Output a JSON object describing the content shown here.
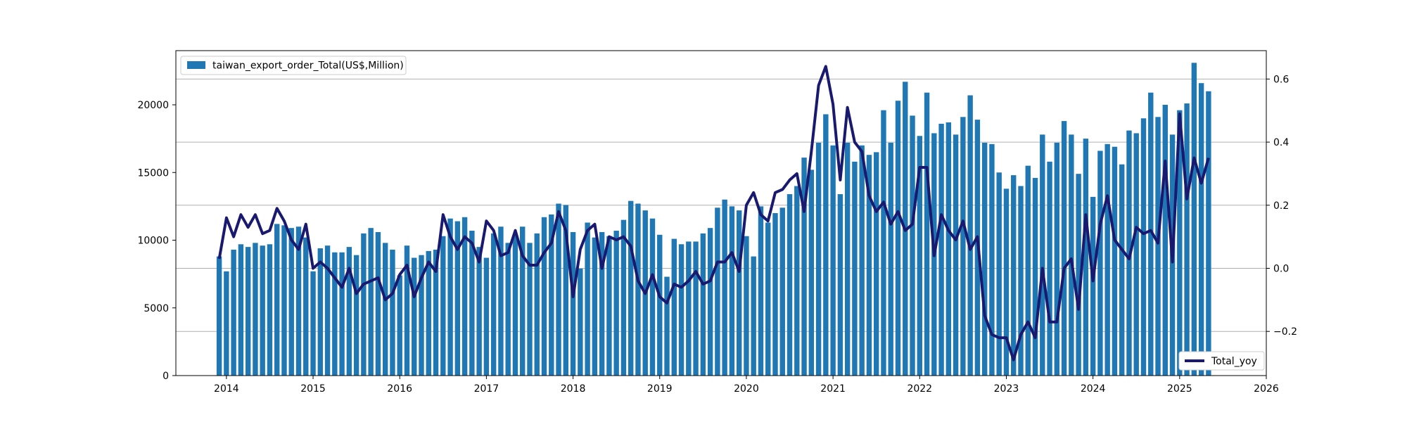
{
  "chart_data": {
    "type": "bar+line",
    "x_ticks": [
      "2014",
      "2015",
      "2016",
      "2017",
      "2018",
      "2019",
      "2020",
      "2021",
      "2022",
      "2023",
      "2024",
      "2025",
      "2026"
    ],
    "x_range": [
      "2013-06",
      "2026-01"
    ],
    "y_left": {
      "ticks": [
        "0",
        "5000",
        "10000",
        "15000",
        "20000"
      ],
      "range": [
        0,
        24000
      ]
    },
    "y_right": {
      "ticks": [
        "−0.2",
        "0.0",
        "0.2",
        "0.4",
        "0.6"
      ],
      "range": [
        -0.34,
        0.69
      ]
    },
    "grid": "horizontal-right-axis",
    "legend_bar_position": "upper-left",
    "legend_line_position": "lower-right",
    "series": [
      {
        "name": "taiwan_export_order_Total(US$,Million)",
        "kind": "bar",
        "axis": "left",
        "color": "#1f77b4",
        "points": [
          [
            "2013-12",
            8800
          ],
          [
            "2014-01",
            7700
          ],
          [
            "2014-02",
            9300
          ],
          [
            "2014-03",
            9700
          ],
          [
            "2014-04",
            9500
          ],
          [
            "2014-05",
            9800
          ],
          [
            "2014-06",
            9600
          ],
          [
            "2014-07",
            9700
          ],
          [
            "2014-08",
            11200
          ],
          [
            "2014-09",
            11100
          ],
          [
            "2014-10",
            10900
          ],
          [
            "2014-11",
            11000
          ],
          [
            "2014-12",
            10200
          ],
          [
            "2015-01",
            7700
          ],
          [
            "2015-02",
            9400
          ],
          [
            "2015-03",
            9600
          ],
          [
            "2015-04",
            9100
          ],
          [
            "2015-05",
            9100
          ],
          [
            "2015-06",
            9500
          ],
          [
            "2015-07",
            8900
          ],
          [
            "2015-08",
            10500
          ],
          [
            "2015-09",
            10900
          ],
          [
            "2015-10",
            10600
          ],
          [
            "2015-11",
            9800
          ],
          [
            "2015-12",
            9300
          ],
          [
            "2016-01",
            7400
          ],
          [
            "2016-02",
            9600
          ],
          [
            "2016-03",
            8700
          ],
          [
            "2016-04",
            8900
          ],
          [
            "2016-05",
            9200
          ],
          [
            "2016-06",
            9300
          ],
          [
            "2016-07",
            10300
          ],
          [
            "2016-08",
            11600
          ],
          [
            "2016-09",
            11400
          ],
          [
            "2016-10",
            11700
          ],
          [
            "2016-11",
            10700
          ],
          [
            "2016-12",
            9500
          ],
          [
            "2017-01",
            8700
          ],
          [
            "2017-02",
            10500
          ],
          [
            "2017-03",
            11000
          ],
          [
            "2017-04",
            9800
          ],
          [
            "2017-05",
            10400
          ],
          [
            "2017-06",
            11000
          ],
          [
            "2017-07",
            9800
          ],
          [
            "2017-08",
            10500
          ],
          [
            "2017-09",
            11700
          ],
          [
            "2017-10",
            11900
          ],
          [
            "2017-11",
            12700
          ],
          [
            "2017-12",
            12600
          ],
          [
            "2018-01",
            10600
          ],
          [
            "2018-02",
            7900
          ],
          [
            "2018-03",
            11300
          ],
          [
            "2018-04",
            10200
          ],
          [
            "2018-05",
            10600
          ],
          [
            "2018-06",
            10300
          ],
          [
            "2018-07",
            10700
          ],
          [
            "2018-08",
            11500
          ],
          [
            "2018-09",
            12900
          ],
          [
            "2018-10",
            12700
          ],
          [
            "2018-11",
            12200
          ],
          [
            "2018-12",
            11600
          ],
          [
            "2019-01",
            10400
          ],
          [
            "2019-02",
            7300
          ],
          [
            "2019-03",
            10100
          ],
          [
            "2019-04",
            9700
          ],
          [
            "2019-05",
            9900
          ],
          [
            "2019-06",
            9900
          ],
          [
            "2019-07",
            10500
          ],
          [
            "2019-08",
            10900
          ],
          [
            "2019-09",
            12400
          ],
          [
            "2019-10",
            13000
          ],
          [
            "2019-11",
            12500
          ],
          [
            "2019-12",
            12200
          ],
          [
            "2020-01",
            10300
          ],
          [
            "2020-02",
            8800
          ],
          [
            "2020-03",
            12500
          ],
          [
            "2020-04",
            11300
          ],
          [
            "2020-05",
            12000
          ],
          [
            "2020-06",
            12400
          ],
          [
            "2020-07",
            13400
          ],
          [
            "2020-08",
            14000
          ],
          [
            "2020-09",
            16100
          ],
          [
            "2020-10",
            15200
          ],
          [
            "2020-11",
            17200
          ],
          [
            "2020-12",
            19300
          ],
          [
            "2021-01",
            17000
          ],
          [
            "2021-02",
            13400
          ],
          [
            "2021-03",
            17200
          ],
          [
            "2021-04",
            15800
          ],
          [
            "2021-05",
            17000
          ],
          [
            "2021-06",
            16300
          ],
          [
            "2021-07",
            16500
          ],
          [
            "2021-08",
            19600
          ],
          [
            "2021-09",
            17200
          ],
          [
            "2021-10",
            20300
          ],
          [
            "2021-11",
            21700
          ],
          [
            "2021-12",
            19200
          ],
          [
            "2022-01",
            17700
          ],
          [
            "2022-02",
            20900
          ],
          [
            "2022-03",
            17900
          ],
          [
            "2022-04",
            18600
          ],
          [
            "2022-05",
            18700
          ],
          [
            "2022-06",
            17800
          ],
          [
            "2022-07",
            19100
          ],
          [
            "2022-08",
            20700
          ],
          [
            "2022-09",
            18900
          ],
          [
            "2022-10",
            17200
          ],
          [
            "2022-11",
            17100
          ],
          [
            "2022-12",
            15000
          ],
          [
            "2023-01",
            13800
          ],
          [
            "2023-02",
            14800
          ],
          [
            "2023-03",
            14000
          ],
          [
            "2023-04",
            15500
          ],
          [
            "2023-05",
            14600
          ],
          [
            "2023-06",
            17800
          ],
          [
            "2023-07",
            15800
          ],
          [
            "2023-08",
            17200
          ],
          [
            "2023-09",
            18800
          ],
          [
            "2023-10",
            17800
          ],
          [
            "2023-11",
            14900
          ],
          [
            "2023-12",
            17500
          ],
          [
            "2024-01",
            13200
          ],
          [
            "2024-02",
            16600
          ],
          [
            "2024-03",
            17100
          ],
          [
            "2024-04",
            16900
          ],
          [
            "2024-05",
            15600
          ],
          [
            "2024-06",
            18100
          ],
          [
            "2024-07",
            17900
          ],
          [
            "2024-08",
            19000
          ],
          [
            "2024-09",
            20900
          ],
          [
            "2024-10",
            19100
          ],
          [
            "2024-11",
            20000
          ],
          [
            "2024-12",
            17800
          ],
          [
            "2025-01",
            19600
          ],
          [
            "2025-02",
            20100
          ],
          [
            "2025-03",
            23100
          ],
          [
            "2025-04",
            21600
          ],
          [
            "2025-05",
            21000
          ]
        ]
      },
      {
        "name": "Total_yoy",
        "kind": "line",
        "axis": "right",
        "color": "#191970",
        "points": [
          [
            "2013-12",
            0.03
          ],
          [
            "2014-01",
            0.16
          ],
          [
            "2014-02",
            0.1
          ],
          [
            "2014-03",
            0.17
          ],
          [
            "2014-04",
            0.13
          ],
          [
            "2014-05",
            0.17
          ],
          [
            "2014-06",
            0.11
          ],
          [
            "2014-07",
            0.12
          ],
          [
            "2014-08",
            0.19
          ],
          [
            "2014-09",
            0.15
          ],
          [
            "2014-10",
            0.09
          ],
          [
            "2014-11",
            0.06
          ],
          [
            "2014-12",
            0.14
          ],
          [
            "2015-01",
            0.0
          ],
          [
            "2015-02",
            0.02
          ],
          [
            "2015-03",
            0.0
          ],
          [
            "2015-04",
            -0.03
          ],
          [
            "2015-05",
            -0.06
          ],
          [
            "2015-06",
            0.0
          ],
          [
            "2015-07",
            -0.08
          ],
          [
            "2015-08",
            -0.05
          ],
          [
            "2015-09",
            -0.04
          ],
          [
            "2015-10",
            -0.03
          ],
          [
            "2015-11",
            -0.1
          ],
          [
            "2015-12",
            -0.08
          ],
          [
            "2016-01",
            -0.02
          ],
          [
            "2016-02",
            0.01
          ],
          [
            "2016-03",
            -0.09
          ],
          [
            "2016-04",
            -0.03
          ],
          [
            "2016-05",
            0.02
          ],
          [
            "2016-06",
            -0.01
          ],
          [
            "2016-07",
            0.17
          ],
          [
            "2016-08",
            0.1
          ],
          [
            "2016-09",
            0.06
          ],
          [
            "2016-10",
            0.1
          ],
          [
            "2016-11",
            0.08
          ],
          [
            "2016-12",
            0.02
          ],
          [
            "2017-01",
            0.15
          ],
          [
            "2017-02",
            0.12
          ],
          [
            "2017-03",
            0.04
          ],
          [
            "2017-04",
            0.05
          ],
          [
            "2017-05",
            0.12
          ],
          [
            "2017-06",
            0.04
          ],
          [
            "2017-07",
            0.01
          ],
          [
            "2017-08",
            0.01
          ],
          [
            "2017-09",
            0.05
          ],
          [
            "2017-10",
            0.08
          ],
          [
            "2017-11",
            0.18
          ],
          [
            "2017-12",
            0.12
          ],
          [
            "2018-01",
            -0.09
          ],
          [
            "2018-02",
            0.06
          ],
          [
            "2018-03",
            0.12
          ],
          [
            "2018-04",
            0.14
          ],
          [
            "2018-05",
            0.0
          ],
          [
            "2018-06",
            0.1
          ],
          [
            "2018-07",
            0.09
          ],
          [
            "2018-08",
            0.1
          ],
          [
            "2018-09",
            0.07
          ],
          [
            "2018-10",
            -0.04
          ],
          [
            "2018-11",
            -0.08
          ],
          [
            "2018-12",
            -0.02
          ],
          [
            "2019-01",
            -0.09
          ],
          [
            "2019-02",
            -0.11
          ],
          [
            "2019-03",
            -0.05
          ],
          [
            "2019-04",
            -0.06
          ],
          [
            "2019-05",
            -0.04
          ],
          [
            "2019-06",
            -0.01
          ],
          [
            "2019-07",
            -0.05
          ],
          [
            "2019-08",
            -0.04
          ],
          [
            "2019-09",
            0.02
          ],
          [
            "2019-10",
            0.02
          ],
          [
            "2019-11",
            0.05
          ],
          [
            "2019-12",
            -0.01
          ],
          [
            "2020-01",
            0.2
          ],
          [
            "2020-02",
            0.24
          ],
          [
            "2020-03",
            0.17
          ],
          [
            "2020-04",
            0.15
          ],
          [
            "2020-05",
            0.24
          ],
          [
            "2020-06",
            0.25
          ],
          [
            "2020-07",
            0.28
          ],
          [
            "2020-08",
            0.3
          ],
          [
            "2020-09",
            0.18
          ],
          [
            "2020-10",
            0.37
          ],
          [
            "2020-11",
            0.58
          ],
          [
            "2020-12",
            0.64
          ],
          [
            "2021-01",
            0.52
          ],
          [
            "2021-02",
            0.28
          ],
          [
            "2021-03",
            0.51
          ],
          [
            "2021-04",
            0.4
          ],
          [
            "2021-05",
            0.37
          ],
          [
            "2021-06",
            0.23
          ],
          [
            "2021-07",
            0.18
          ],
          [
            "2021-08",
            0.21
          ],
          [
            "2021-09",
            0.14
          ],
          [
            "2021-10",
            0.18
          ],
          [
            "2021-11",
            0.12
          ],
          [
            "2021-12",
            0.14
          ],
          [
            "2022-01",
            0.32
          ],
          [
            "2022-02",
            0.32
          ],
          [
            "2022-03",
            0.04
          ],
          [
            "2022-04",
            0.17
          ],
          [
            "2022-05",
            0.12
          ],
          [
            "2022-06",
            0.09
          ],
          [
            "2022-07",
            0.15
          ],
          [
            "2022-08",
            0.06
          ],
          [
            "2022-09",
            0.1
          ],
          [
            "2022-10",
            -0.15
          ],
          [
            "2022-11",
            -0.21
          ],
          [
            "2022-12",
            -0.22
          ],
          [
            "2023-01",
            -0.22
          ],
          [
            "2023-02",
            -0.29
          ],
          [
            "2023-03",
            -0.21
          ],
          [
            "2023-04",
            -0.17
          ],
          [
            "2023-05",
            -0.22
          ],
          [
            "2023-06",
            0.0
          ],
          [
            "2023-07",
            -0.17
          ],
          [
            "2023-08",
            -0.17
          ],
          [
            "2023-09",
            0.0
          ],
          [
            "2023-10",
            0.03
          ],
          [
            "2023-11",
            -0.13
          ],
          [
            "2023-12",
            0.17
          ],
          [
            "2024-01",
            -0.04
          ],
          [
            "2024-02",
            0.14
          ],
          [
            "2024-03",
            0.23
          ],
          [
            "2024-04",
            0.09
          ],
          [
            "2024-05",
            0.06
          ],
          [
            "2024-06",
            0.03
          ],
          [
            "2024-07",
            0.13
          ],
          [
            "2024-08",
            0.11
          ],
          [
            "2024-09",
            0.12
          ],
          [
            "2024-10",
            0.08
          ],
          [
            "2024-11",
            0.34
          ],
          [
            "2024-12",
            0.02
          ],
          [
            "2025-01",
            0.49
          ],
          [
            "2025-02",
            0.22
          ],
          [
            "2025-03",
            0.35
          ],
          [
            "2025-04",
            0.27
          ],
          [
            "2025-05",
            0.35
          ]
        ]
      }
    ]
  }
}
